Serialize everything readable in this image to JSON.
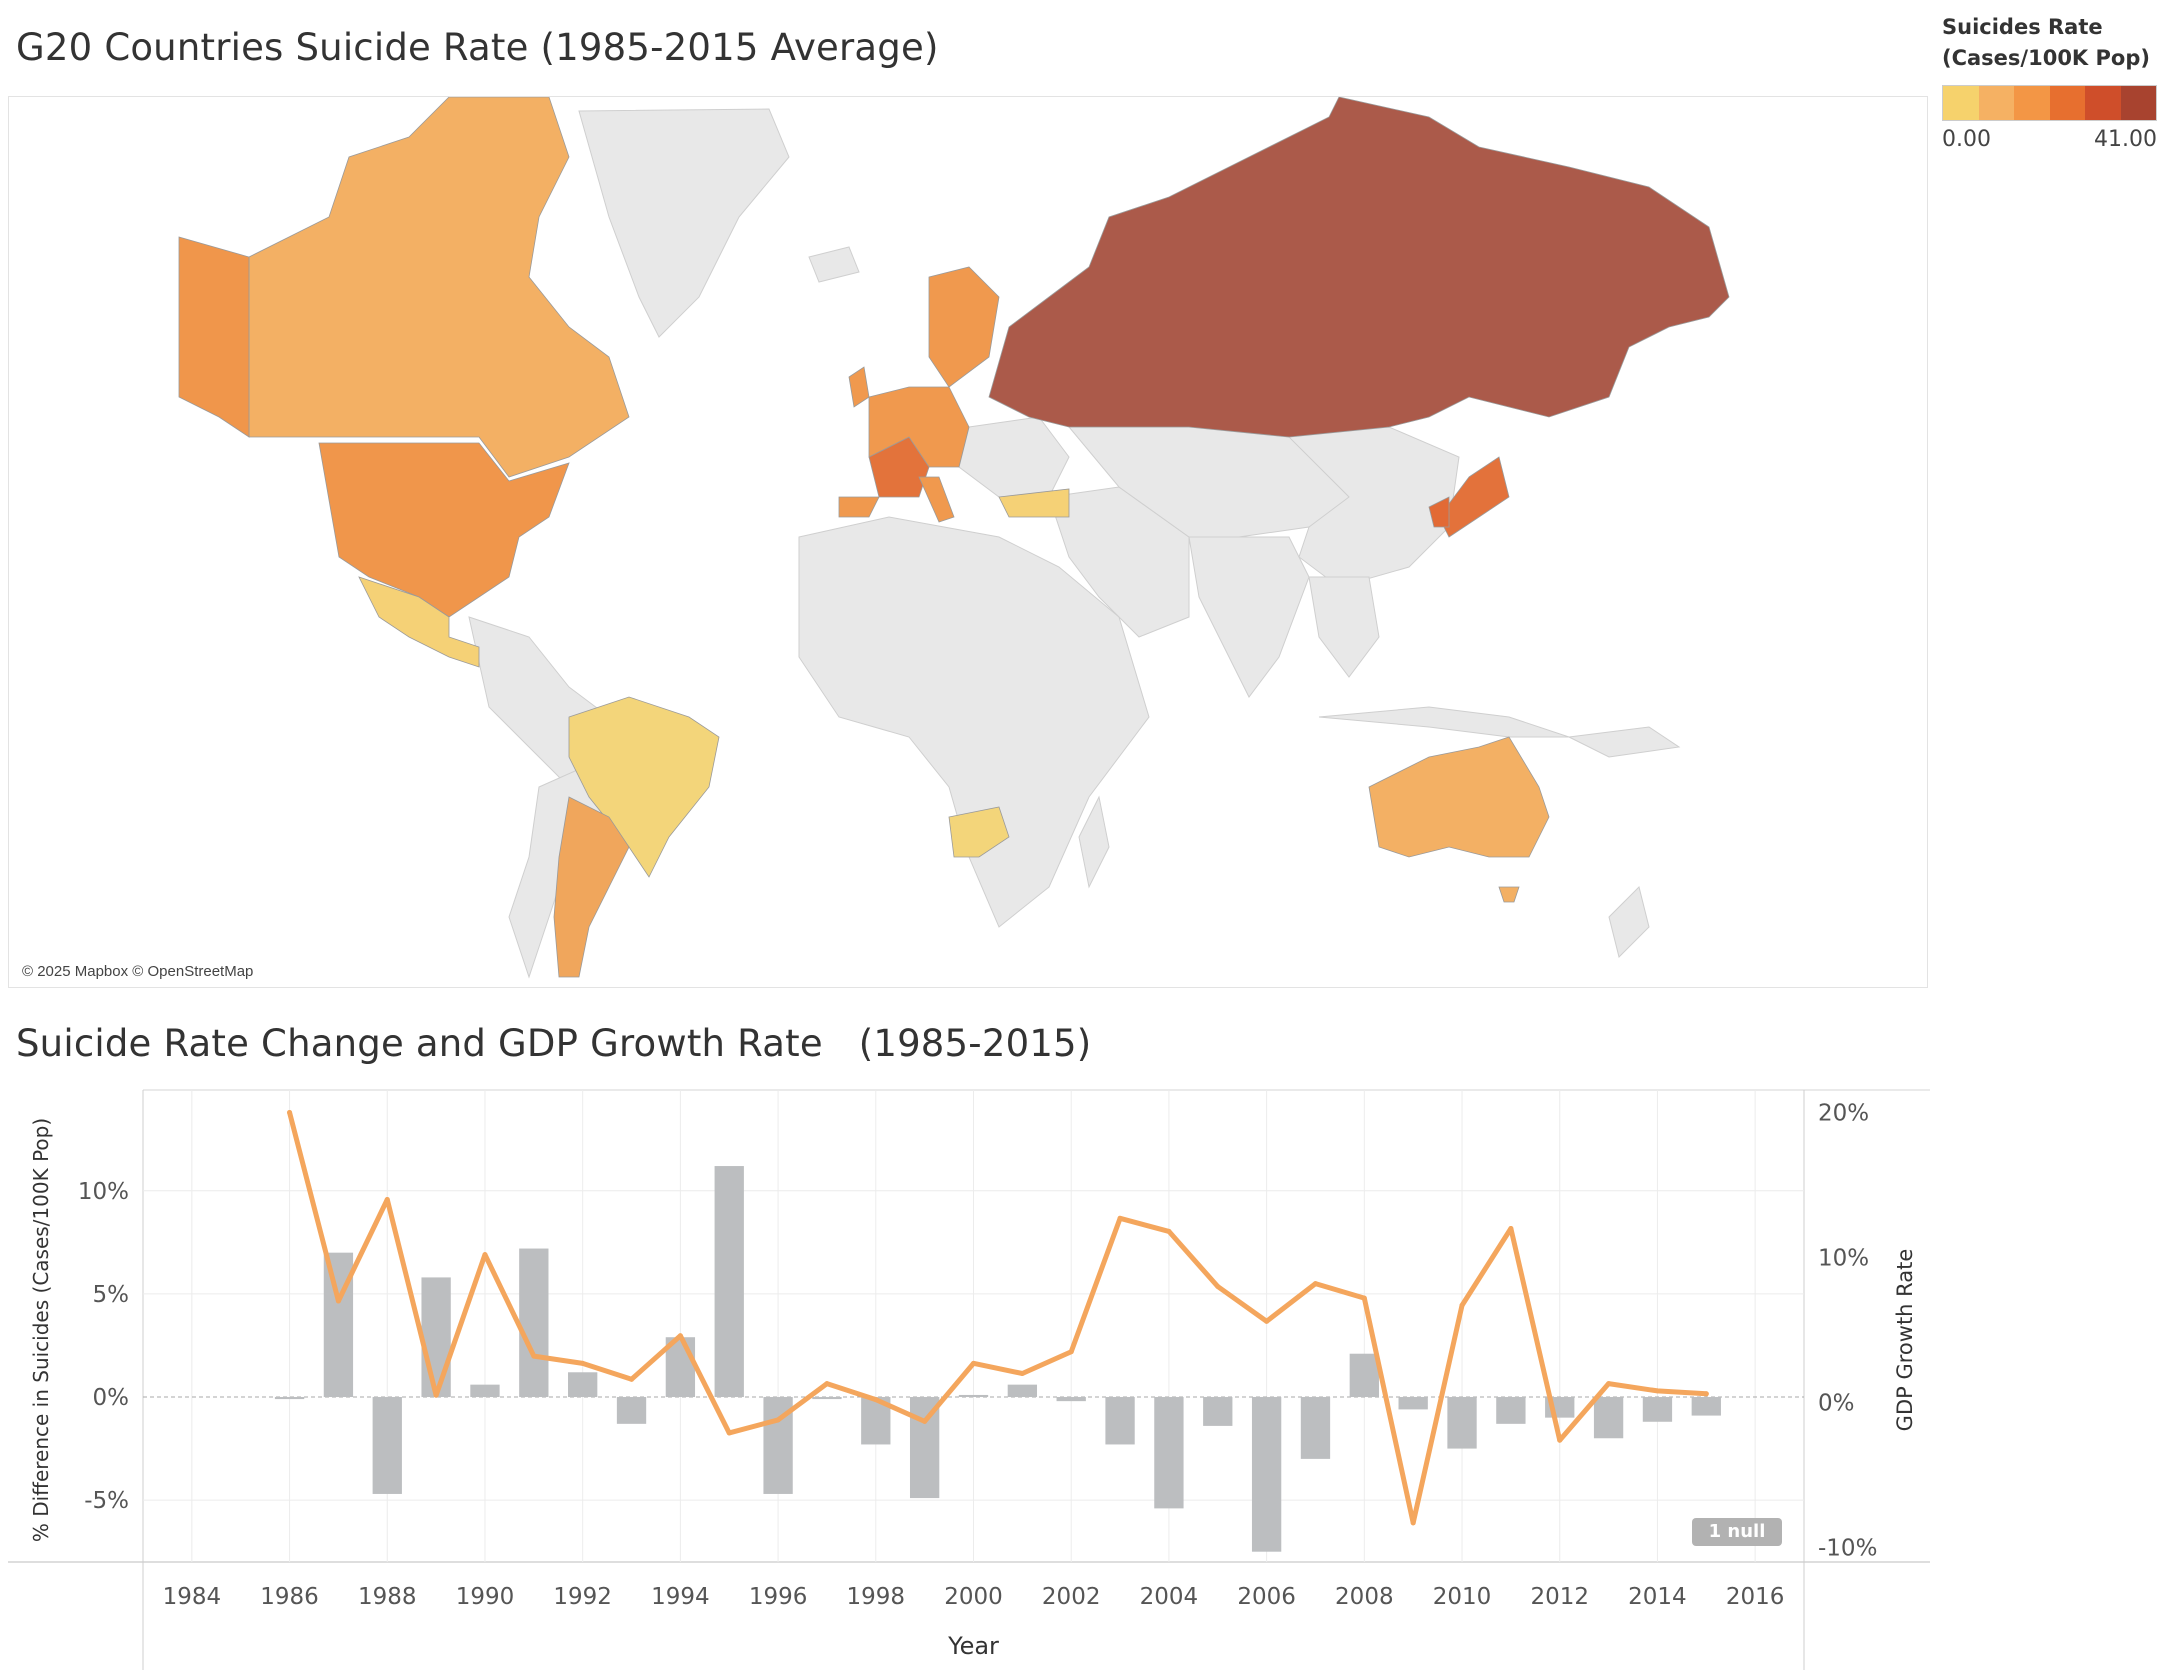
{
  "map": {
    "title": "G20 Countries Suicide Rate (1985-2015 Average)",
    "attribution": "© 2025 Mapbox © OpenStreetMap",
    "legend": {
      "title_line1": "Suicides Rate",
      "title_line2": "(Cases/100K Pop)",
      "min_label": "0.00",
      "max_label": "41.00",
      "colors": [
        "#f6d26c",
        "#f5b163",
        "#f39645",
        "#e76f2f",
        "#cf4e2a",
        "#a8432f"
      ]
    },
    "countries": [
      {
        "name": "Russia",
        "color": "#ab5a4a"
      },
      {
        "name": "Canada",
        "color": "#f3b064"
      },
      {
        "name": "USA",
        "color": "#f0964b"
      },
      {
        "name": "Mexico",
        "color": "#f5d176"
      },
      {
        "name": "Brazil",
        "color": "#f3d57a"
      },
      {
        "name": "Argentina",
        "color": "#f0a65c"
      },
      {
        "name": "Australia",
        "color": "#f3b064"
      },
      {
        "name": "South Africa",
        "color": "#f3d57a"
      },
      {
        "name": "Japan",
        "color": "#e3723b"
      },
      {
        "name": "South Korea",
        "color": "#e26a35"
      },
      {
        "name": "France",
        "color": "#e3733b"
      },
      {
        "name": "Turkey",
        "color": "#f5d176"
      },
      {
        "name": "Europe",
        "color": "#f0994e"
      }
    ]
  },
  "chart": {
    "title": "Suicide Rate Change and GDP Growth Rate   (1985-2015)",
    "null_badge": "1 null"
  },
  "chart_data": {
    "type": "bar",
    "title": "Suicide Rate Change and GDP Growth Rate   (1985-2015)",
    "xlabel": "Year",
    "ylabel": "% Difference in Suicides (Cases/100K Pop)",
    "y2label": "GDP Growth Rate",
    "xlim": [
      1983,
      2017
    ],
    "x_ticks": [
      "1984",
      "1986",
      "1988",
      "1990",
      "1992",
      "1994",
      "1996",
      "1998",
      "2000",
      "2002",
      "2004",
      "2006",
      "2008",
      "2010",
      "2012",
      "2014",
      "2016"
    ],
    "ylim": [
      -8,
      14.5
    ],
    "y_ticks": [
      "10%",
      "5%",
      "0%",
      "-5%"
    ],
    "y_tick_values": [
      10,
      5,
      0,
      -5
    ],
    "y2lim": [
      -11,
      21
    ],
    "y2_ticks": [
      "20%",
      "10%",
      "0%",
      "-10%"
    ],
    "y2_tick_values": [
      20,
      10,
      0,
      -10
    ],
    "grid": true,
    "series": [
      {
        "name": "% Difference in Suicides (Cases/100K Pop)",
        "type": "bar",
        "color": "#bcbec0",
        "x": [
          1986,
          1987,
          1988,
          1989,
          1990,
          1991,
          1992,
          1993,
          1994,
          1995,
          1996,
          1997,
          1998,
          1999,
          2000,
          2001,
          2002,
          2003,
          2004,
          2005,
          2006,
          2007,
          2008,
          2009,
          2010,
          2011,
          2012,
          2013,
          2014,
          2015
        ],
        "values": [
          -0.1,
          7.0,
          -4.7,
          5.8,
          0.6,
          7.2,
          1.2,
          -1.3,
          2.9,
          11.2,
          -4.7,
          -0.1,
          -2.3,
          -4.9,
          0.1,
          0.6,
          -0.2,
          -2.3,
          -5.4,
          -1.4,
          -7.5,
          -3.0,
          2.1,
          -0.6,
          -2.5,
          -1.3,
          -1.0,
          -2.0,
          -1.2,
          -0.9
        ]
      },
      {
        "name": "GDP Growth Rate",
        "type": "line",
        "color": "#f4a65d",
        "x": [
          1986,
          1987,
          1988,
          1989,
          1990,
          1991,
          1992,
          1993,
          1994,
          1995,
          1996,
          1997,
          1998,
          1999,
          2000,
          2001,
          2002,
          2003,
          2004,
          2005,
          2006,
          2007,
          2008,
          2009,
          2010,
          2011,
          2012,
          2013,
          2014,
          2015
        ],
        "values": [
          20.0,
          7.0,
          14.0,
          0.5,
          10.2,
          3.2,
          2.7,
          1.6,
          4.6,
          -2.1,
          -1.2,
          1.3,
          0.2,
          -1.3,
          2.7,
          2.0,
          3.5,
          12.7,
          11.8,
          8.0,
          5.6,
          8.2,
          7.2,
          -8.3,
          6.7,
          12.0,
          -2.6,
          1.3,
          0.8,
          0.6
        ]
      }
    ]
  }
}
